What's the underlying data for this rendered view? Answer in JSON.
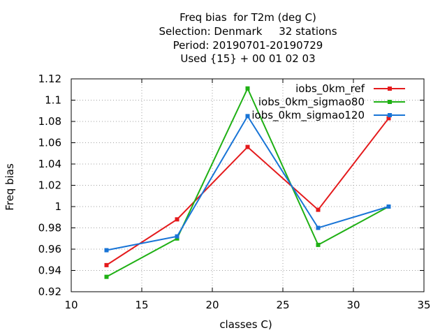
{
  "chart_data": {
    "type": "line",
    "title_lines": [
      "Freq bias  for T2m (deg C)",
      "Selection: Denmark     32 stations",
      "Period: 20190701-20190729",
      "Used {15} + 00 01 02 03"
    ],
    "xlabel": "classes C)",
    "ylabel": "Freq bias",
    "xlim": [
      10,
      35
    ],
    "ylim": [
      0.92,
      1.12
    ],
    "x_ticks": [
      10,
      15,
      20,
      25,
      30,
      35
    ],
    "y_ticks": [
      0.92,
      0.94,
      0.96,
      0.98,
      1.0,
      1.02,
      1.04,
      1.06,
      1.08,
      1.1,
      1.12
    ],
    "x_tick_labels": [
      "10",
      "15",
      "20",
      "25",
      "30",
      "35"
    ],
    "y_tick_labels": [
      "0.92",
      "0.94",
      "0.96",
      "0.98",
      "1",
      "1.02",
      "1.04",
      "1.06",
      "1.08",
      "1.1",
      "1.12"
    ],
    "grid": true,
    "legend_position": "top-right",
    "x": [
      12.5,
      17.5,
      22.5,
      27.5,
      32.5
    ],
    "series": [
      {
        "name": "iobs_0km_ref",
        "color": "#e41a1c",
        "values": [
          0.945,
          0.988,
          1.056,
          0.997,
          1.083
        ]
      },
      {
        "name": "iobs_0km_sigmao80",
        "color": "#1fb014",
        "values": [
          0.934,
          0.97,
          1.111,
          0.964,
          1.0
        ]
      },
      {
        "name": "iobs_0km_sigmao120",
        "color": "#1874d6",
        "values": [
          0.959,
          0.972,
          1.085,
          0.98,
          1.0
        ]
      }
    ]
  }
}
